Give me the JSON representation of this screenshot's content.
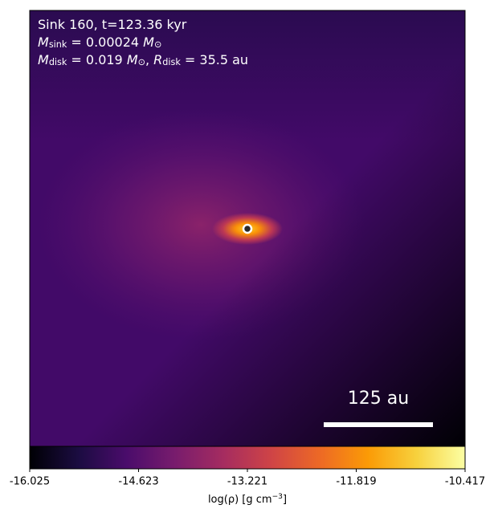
{
  "chart_data": {
    "type": "heatmap",
    "annotations": [
      [
        {
          "text": "Sink 160, t=123.36 kyr"
        }
      ],
      [
        {
          "text": "M"
        },
        {
          "text": "sink",
          "sub": true
        },
        {
          "text": " = 0.00024 "
        },
        {
          "text": "M"
        },
        {
          "text": "⊙",
          "sub": true
        }
      ],
      [
        {
          "text": "M"
        },
        {
          "text": "disk",
          "sub": true
        },
        {
          "text": " = 0.019 "
        },
        {
          "text": "M"
        },
        {
          "text": "⊙",
          "sub": true
        },
        {
          "text": ", "
        },
        {
          "text": "R"
        },
        {
          "text": "disk",
          "sub": true
        },
        {
          "text": " = 35.5 au"
        }
      ]
    ],
    "scale_bar": {
      "label": "125 au"
    },
    "colorbar": {
      "label": [
        {
          "text": "log(ρ) [g cm"
        },
        {
          "text": "−3",
          "sup": true
        },
        {
          "text": "]"
        }
      ],
      "lim": [
        -16.025,
        -10.417
      ],
      "ticks": [
        -16.025,
        -14.623,
        -13.221,
        -11.819,
        -10.417
      ],
      "colormap": "inferno"
    }
  }
}
